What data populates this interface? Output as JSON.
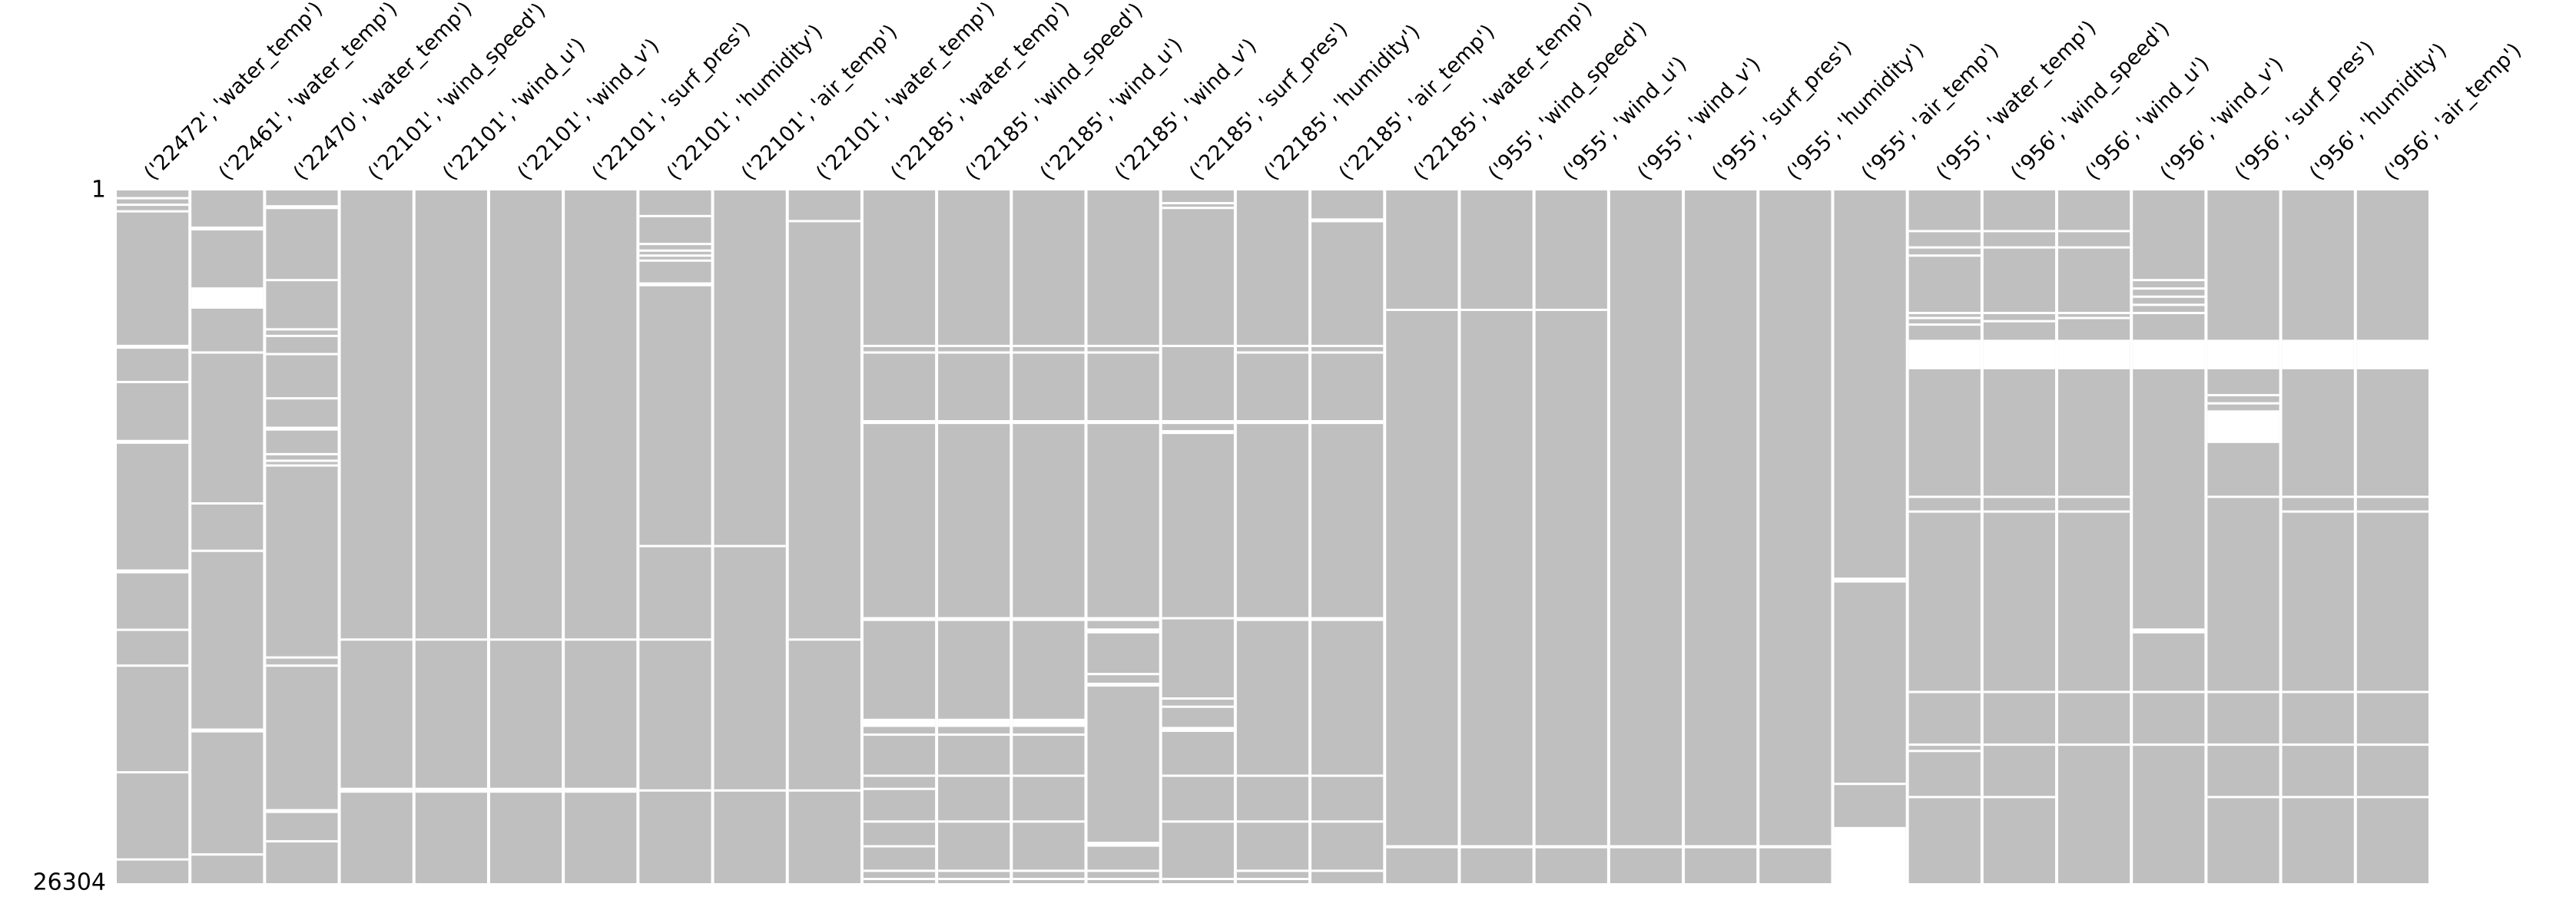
{
  "chart_data": {
    "type": "matrix",
    "color": "#bfbfbf",
    "gap_color": "#ffffff",
    "ylim": [
      1,
      26304
    ],
    "yticks": [
      1,
      26304
    ],
    "columns": [
      {
        "name": "('22472', 'water_temp')",
        "gaps": [
          [
            250,
            310
          ],
          [
            500,
            560
          ],
          [
            750,
            810
          ],
          [
            5860,
            6010
          ],
          [
            7230,
            7290
          ],
          [
            9470,
            9620
          ],
          [
            14390,
            14540
          ],
          [
            16640,
            16700
          ],
          [
            18000,
            18060
          ],
          [
            22050,
            22110
          ],
          [
            25360,
            25420
          ]
        ]
      },
      {
        "name": "('22461', 'water_temp')",
        "gaps": [
          [
            1370,
            1520
          ],
          [
            3680,
            4490
          ],
          [
            6110,
            6170
          ],
          [
            11840,
            11900
          ],
          [
            13640,
            13700
          ],
          [
            20430,
            20580
          ],
          [
            25170,
            25230
          ]
        ]
      },
      {
        "name": "('22470', 'water_temp')",
        "gaps": [
          [
            560,
            710
          ],
          [
            3360,
            3420
          ],
          [
            5230,
            5290
          ],
          [
            5480,
            5540
          ],
          [
            6170,
            6230
          ],
          [
            7850,
            7910
          ],
          [
            8970,
            9120
          ],
          [
            9970,
            10030
          ],
          [
            10220,
            10280
          ],
          [
            10400,
            10460
          ],
          [
            17690,
            17750
          ],
          [
            18000,
            18060
          ],
          [
            23490,
            23640
          ],
          [
            24670,
            24730
          ]
        ]
      },
      {
        "name": "('22101', 'wind_speed')",
        "gaps": [
          [
            17010,
            17070
          ],
          [
            22680,
            22870
          ]
        ]
      },
      {
        "name": "('22101', 'wind_u')",
        "gaps": [
          [
            17010,
            17070
          ],
          [
            22680,
            22870
          ]
        ]
      },
      {
        "name": "('22101', 'wind_v')",
        "gaps": [
          [
            17010,
            17070
          ],
          [
            22680,
            22870
          ]
        ]
      },
      {
        "name": "('22101', 'surf_pres')",
        "gaps": [
          [
            17010,
            17070
          ],
          [
            22680,
            22870
          ]
        ]
      },
      {
        "name": "('22101', 'humidity')",
        "gaps": [
          [
            930,
            990
          ],
          [
            1990,
            2050
          ],
          [
            2240,
            2300
          ],
          [
            2430,
            2490
          ],
          [
            2620,
            2680
          ],
          [
            3490,
            3640
          ],
          [
            13460,
            13520
          ],
          [
            17010,
            17070
          ],
          [
            22740,
            22800
          ]
        ]
      },
      {
        "name": "('22101', 'air_temp')",
        "gaps": [
          [
            13460,
            13520
          ],
          [
            22740,
            22800
          ]
        ]
      },
      {
        "name": "('22101', 'water_temp')",
        "gaps": [
          [
            1120,
            1180
          ],
          [
            17010,
            17070
          ],
          [
            22740,
            22800
          ]
        ]
      },
      {
        "name": "('22185', 'water_temp')",
        "gaps": [
          [
            5860,
            5920
          ],
          [
            6110,
            6170
          ],
          [
            8720,
            8870
          ],
          [
            16200,
            16350
          ],
          [
            20060,
            20370
          ],
          [
            20620,
            20680
          ],
          [
            22180,
            22240
          ],
          [
            22680,
            22740
          ],
          [
            23920,
            23980
          ],
          [
            24860,
            24920
          ],
          [
            25790,
            25850
          ],
          [
            26100,
            26160
          ]
        ]
      },
      {
        "name": "('22185', 'wind_speed')",
        "gaps": [
          [
            5860,
            5920
          ],
          [
            6110,
            6170
          ],
          [
            8720,
            8870
          ],
          [
            16200,
            16350
          ],
          [
            20060,
            20370
          ],
          [
            20620,
            20680
          ],
          [
            22180,
            22240
          ],
          [
            23920,
            23980
          ],
          [
            25790,
            25850
          ],
          [
            26100,
            26160
          ]
        ]
      },
      {
        "name": "('22185', 'wind_u')",
        "gaps": [
          [
            5860,
            5920
          ],
          [
            6110,
            6170
          ],
          [
            8720,
            8870
          ],
          [
            16200,
            16350
          ],
          [
            20060,
            20370
          ],
          [
            20620,
            20680
          ],
          [
            22180,
            22240
          ],
          [
            23920,
            23980
          ],
          [
            25790,
            25850
          ],
          [
            26100,
            26160
          ]
        ]
      },
      {
        "name": "('22185', 'wind_v')",
        "gaps": [
          [
            5860,
            5920
          ],
          [
            6110,
            6170
          ],
          [
            8720,
            8870
          ],
          [
            16200,
            16350
          ],
          [
            16630,
            16820
          ],
          [
            18320,
            18380
          ],
          [
            18690,
            18840
          ],
          [
            24730,
            24920
          ],
          [
            25790,
            25850
          ],
          [
            26100,
            26160
          ]
        ]
      },
      {
        "name": "('22185', 'surf_pres')",
        "gaps": [
          [
            440,
            500
          ],
          [
            620,
            680
          ],
          [
            5860,
            5920
          ],
          [
            8720,
            8870
          ],
          [
            9100,
            9250
          ],
          [
            16200,
            16260
          ],
          [
            19250,
            19310
          ],
          [
            19560,
            19620
          ],
          [
            20370,
            20560
          ],
          [
            22180,
            22240
          ],
          [
            23920,
            23980
          ],
          [
            26100,
            26160
          ]
        ]
      },
      {
        "name": "('22185', 'humidity')",
        "gaps": [
          [
            5860,
            5920
          ],
          [
            6110,
            6170
          ],
          [
            8720,
            8870
          ],
          [
            16200,
            16350
          ],
          [
            22180,
            22240
          ],
          [
            23920,
            23980
          ],
          [
            25790,
            25850
          ],
          [
            26100,
            26160
          ]
        ]
      },
      {
        "name": "('22185', 'air_temp')",
        "gaps": [
          [
            1060,
            1210
          ],
          [
            5860,
            5920
          ],
          [
            6110,
            6170
          ],
          [
            8720,
            8870
          ],
          [
            16200,
            16350
          ],
          [
            22180,
            22240
          ],
          [
            23920,
            23980
          ],
          [
            25790,
            25850
          ]
        ]
      },
      {
        "name": "('22185', 'water_temp')",
        "gaps": [
          [
            4490,
            4550
          ],
          [
            24860,
            24980
          ]
        ]
      },
      {
        "name": "('955', 'wind_speed')",
        "gaps": [
          [
            4490,
            4550
          ],
          [
            24860,
            24980
          ]
        ]
      },
      {
        "name": "('955', 'wind_u')",
        "gaps": [
          [
            4490,
            4550
          ],
          [
            24860,
            24980
          ]
        ]
      },
      {
        "name": "('955', 'wind_v')",
        "gaps": [
          [
            24860,
            24980
          ]
        ]
      },
      {
        "name": "('955', 'surf_pres')",
        "gaps": [
          [
            24860,
            24980
          ]
        ]
      },
      {
        "name": "('955', 'humidity')",
        "gaps": [
          [
            24860,
            24980
          ]
        ]
      },
      {
        "name": "('955', 'air_temp')",
        "gaps": [
          [
            14700,
            14890
          ],
          [
            22490,
            22550
          ],
          [
            24170,
            26304
          ]
        ]
      },
      {
        "name": "('955', 'water_temp')",
        "gaps": [
          [
            1500,
            1560
          ],
          [
            2120,
            2180
          ],
          [
            2430,
            2490
          ],
          [
            4610,
            4670
          ],
          [
            4800,
            4860
          ],
          [
            5050,
            5110
          ],
          [
            5670,
            6790
          ],
          [
            11590,
            11650
          ],
          [
            12150,
            12210
          ],
          [
            19000,
            19060
          ],
          [
            21000,
            21060
          ],
          [
            21240,
            21300
          ],
          [
            22990,
            23050
          ]
        ]
      },
      {
        "name": "('956', 'wind_speed')",
        "gaps": [
          [
            1500,
            1560
          ],
          [
            2120,
            2180
          ],
          [
            4610,
            4670
          ],
          [
            4920,
            4980
          ],
          [
            5670,
            6790
          ],
          [
            11590,
            11650
          ],
          [
            12150,
            12210
          ],
          [
            19000,
            19060
          ],
          [
            21000,
            21060
          ],
          [
            22990,
            23050
          ]
        ]
      },
      {
        "name": "('956', 'wind_u')",
        "gaps": [
          [
            1500,
            1560
          ],
          [
            2120,
            2180
          ],
          [
            4610,
            4670
          ],
          [
            4800,
            4860
          ],
          [
            5670,
            6790
          ],
          [
            11590,
            11650
          ],
          [
            12150,
            12210
          ],
          [
            19000,
            19060
          ],
          [
            21000,
            21060
          ]
        ]
      },
      {
        "name": "('956', 'wind_v')",
        "gaps": [
          [
            3360,
            3420
          ],
          [
            3680,
            3740
          ],
          [
            3990,
            4050
          ],
          [
            4300,
            4360
          ],
          [
            4610,
            4670
          ],
          [
            5670,
            6790
          ],
          [
            16630,
            16820
          ],
          [
            19000,
            19060
          ],
          [
            21000,
            21060
          ]
        ]
      },
      {
        "name": "('956', 'surf_pres')",
        "gaps": [
          [
            5670,
            6790
          ],
          [
            7730,
            7790
          ],
          [
            8040,
            8100
          ],
          [
            8350,
            9590
          ],
          [
            11590,
            11650
          ],
          [
            19000,
            19060
          ],
          [
            21000,
            21060
          ],
          [
            22990,
            23050
          ]
        ]
      },
      {
        "name": "('956', 'humidity')",
        "gaps": [
          [
            5670,
            6790
          ],
          [
            11590,
            11650
          ],
          [
            12150,
            12210
          ],
          [
            19000,
            19060
          ],
          [
            21000,
            21060
          ],
          [
            22990,
            23050
          ]
        ]
      },
      {
        "name": "('956', 'air_temp')",
        "gaps": [
          [
            5670,
            6790
          ],
          [
            11590,
            11650
          ],
          [
            12150,
            12210
          ],
          [
            19000,
            19060
          ],
          [
            21000,
            21060
          ],
          [
            22990,
            23050
          ]
        ]
      }
    ]
  }
}
